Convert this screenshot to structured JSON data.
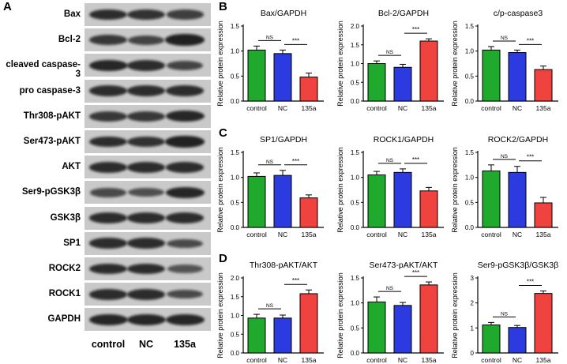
{
  "panel_letters": [
    "A",
    "B",
    "C",
    "D"
  ],
  "blot": {
    "rows": [
      {
        "label": "Bax",
        "intensity": [
          0.85,
          0.8,
          0.7
        ]
      },
      {
        "label": "Bcl-2",
        "intensity": [
          0.75,
          0.65,
          0.95
        ]
      },
      {
        "label": "cleaved caspase-3",
        "intensity": [
          0.9,
          0.85,
          0.65
        ]
      },
      {
        "label": "pro caspase-3",
        "intensity": [
          0.85,
          0.85,
          0.85
        ]
      },
      {
        "label": "Thr308-pAKT",
        "intensity": [
          0.75,
          0.75,
          0.9
        ]
      },
      {
        "label": "Ser473-pAKT",
        "intensity": [
          0.85,
          0.8,
          0.95
        ]
      },
      {
        "label": "AKT",
        "intensity": [
          0.85,
          0.85,
          0.85
        ]
      },
      {
        "label": "Ser9-pGSK3β",
        "intensity": [
          0.6,
          0.55,
          0.9
        ]
      },
      {
        "label": "GSK3β",
        "intensity": [
          0.85,
          0.85,
          0.85
        ]
      },
      {
        "label": "SP1",
        "intensity": [
          0.85,
          0.85,
          0.6
        ]
      },
      {
        "label": "ROCK2",
        "intensity": [
          0.85,
          0.85,
          0.5
        ]
      },
      {
        "label": "ROCK1",
        "intensity": [
          0.85,
          0.85,
          0.6
        ]
      },
      {
        "label": "GAPDH",
        "intensity": [
          0.9,
          0.9,
          0.9
        ]
      }
    ],
    "lanes": [
      "control",
      "NC",
      "135a"
    ]
  },
  "colors": {
    "control": "#1faa2e",
    "NC": "#2b3be0",
    "135a": "#f0433f"
  },
  "ylabel": "Relative protein expression",
  "chart_data": [
    {
      "type": "bar",
      "panel": "B",
      "title": "Bax/GAPDH",
      "categories": [
        "control",
        "NC",
        "135a"
      ],
      "values": [
        1.02,
        0.95,
        0.48
      ],
      "errors": [
        0.08,
        0.07,
        0.08
      ],
      "ylim": [
        0,
        1.5
      ],
      "ticks": [
        "0.0",
        "0.5",
        "1.0",
        "1.5"
      ],
      "sig": [
        {
          "text": "NS",
          "from": 0,
          "to": 1
        },
        {
          "text": "***",
          "from": 1,
          "to": 2
        }
      ]
    },
    {
      "type": "bar",
      "panel": "B",
      "title": "Bcl-2/GAPDH",
      "categories": [
        "control",
        "NC",
        "135a"
      ],
      "values": [
        1.0,
        0.9,
        1.6
      ],
      "errors": [
        0.07,
        0.08,
        0.06
      ],
      "ylim": [
        0,
        2.0
      ],
      "ticks": [
        "0.0",
        "0.5",
        "1.0",
        "1.5",
        "2.0"
      ],
      "sig": [
        {
          "text": "NS",
          "from": 0,
          "to": 1
        },
        {
          "text": "***",
          "from": 1,
          "to": 2
        }
      ]
    },
    {
      "type": "bar",
      "panel": "B",
      "title": "c/p-caspase3",
      "categories": [
        "control",
        "NC",
        "135a"
      ],
      "values": [
        1.02,
        0.97,
        0.63
      ],
      "errors": [
        0.07,
        0.05,
        0.07
      ],
      "ylim": [
        0,
        1.5
      ],
      "ticks": [
        "0.0",
        "0.5",
        "1.0",
        "1.5"
      ],
      "sig": [
        {
          "text": "NS",
          "from": 0,
          "to": 1
        },
        {
          "text": "***",
          "from": 1,
          "to": 2
        }
      ]
    },
    {
      "type": "bar",
      "panel": "C",
      "title": "SP1/GAPDH",
      "categories": [
        "control",
        "NC",
        "135a"
      ],
      "values": [
        1.02,
        1.04,
        0.59
      ],
      "errors": [
        0.07,
        0.1,
        0.06
      ],
      "ylim": [
        0,
        1.5
      ],
      "ticks": [
        "0.0",
        "0.5",
        "1.0",
        "1.5"
      ],
      "sig": [
        {
          "text": "NS",
          "from": 0,
          "to": 1
        },
        {
          "text": "***",
          "from": 1,
          "to": 2
        }
      ]
    },
    {
      "type": "bar",
      "panel": "C",
      "title": "ROCK1/GAPDH",
      "categories": [
        "control",
        "NC",
        "135a"
      ],
      "values": [
        1.05,
        1.1,
        0.73
      ],
      "errors": [
        0.07,
        0.07,
        0.07
      ],
      "ylim": [
        0,
        1.5
      ],
      "ticks": [
        "0.0",
        "0.5",
        "1.0",
        "1.5"
      ],
      "sig": [
        {
          "text": "NS",
          "from": 0,
          "to": 1
        },
        {
          "text": "***",
          "from": 1,
          "to": 2
        }
      ]
    },
    {
      "type": "bar",
      "panel": "C",
      "title": "ROCK2/GAPDH",
      "categories": [
        "control",
        "NC",
        "135a"
      ],
      "values": [
        1.13,
        1.1,
        0.49
      ],
      "errors": [
        0.12,
        0.12,
        0.11
      ],
      "ylim": [
        0,
        1.5
      ],
      "ticks": [
        "0.0",
        "0.5",
        "1.0",
        "1.5"
      ],
      "sig": [
        {
          "text": "NS",
          "from": 0,
          "to": 1
        },
        {
          "text": "***",
          "from": 1,
          "to": 2
        }
      ]
    },
    {
      "type": "bar",
      "panel": "D",
      "title": "Thr308-pAKT/AKT",
      "categories": [
        "control",
        "NC",
        "135a"
      ],
      "values": [
        0.93,
        0.93,
        1.58
      ],
      "errors": [
        0.1,
        0.08,
        0.1
      ],
      "ylim": [
        0,
        2.0
      ],
      "ticks": [
        "0.0",
        "0.5",
        "1.0",
        "1.5",
        "2.0"
      ],
      "sig": [
        {
          "text": "NS",
          "from": 0,
          "to": 1
        },
        {
          "text": "***",
          "from": 1,
          "to": 2
        }
      ]
    },
    {
      "type": "bar",
      "panel": "D",
      "title": "Ser473-pAKT/AKT",
      "categories": [
        "control",
        "NC",
        "135a"
      ],
      "values": [
        1.02,
        0.95,
        1.36
      ],
      "errors": [
        0.1,
        0.06,
        0.06
      ],
      "ylim": [
        0,
        1.5
      ],
      "ticks": [
        "0.0",
        "0.5",
        "1.0",
        "1.5"
      ],
      "sig": [
        {
          "text": "NS",
          "from": 0,
          "to": 1
        },
        {
          "text": "***",
          "from": 1,
          "to": 2
        }
      ]
    },
    {
      "type": "bar",
      "panel": "D",
      "title": "Ser9-pGSK3β/GSK3β",
      "categories": [
        "control",
        "NC",
        "135a"
      ],
      "values": [
        1.12,
        1.02,
        2.38
      ],
      "errors": [
        0.1,
        0.08,
        0.1
      ],
      "ylim": [
        0,
        3
      ],
      "ticks": [
        "0",
        "1",
        "2",
        "3"
      ],
      "sig": [
        {
          "text": "NS",
          "from": 0,
          "to": 1
        },
        {
          "text": "***",
          "from": 1,
          "to": 2
        }
      ]
    }
  ]
}
